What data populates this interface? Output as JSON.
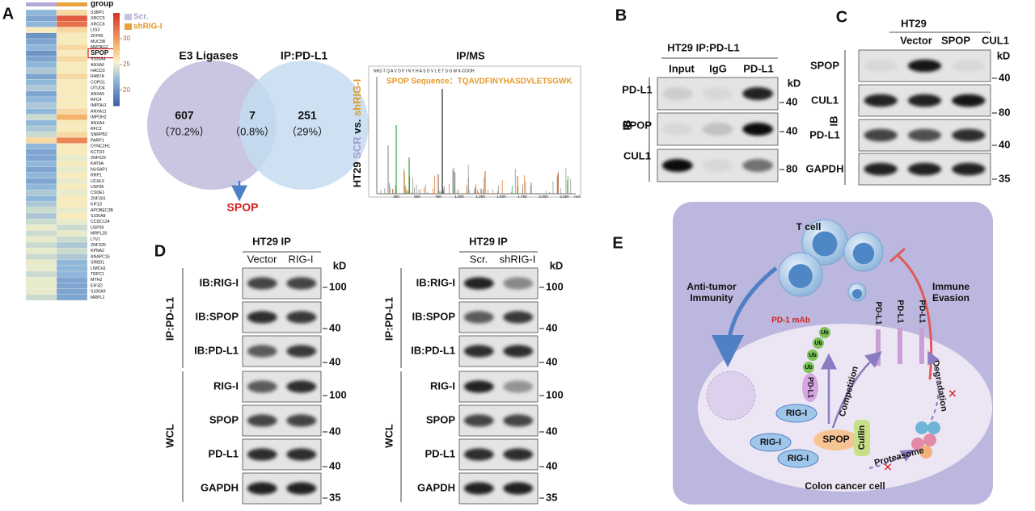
{
  "panel_labels": [
    "A",
    "B",
    "C",
    "D",
    "E"
  ],
  "heatmap": {
    "group_label": "group",
    "legend": [
      "Scr.",
      "shRIG-I"
    ],
    "colorbar": {
      "range": [
        17,
        35
      ],
      "ticks": [
        30,
        25,
        20
      ]
    },
    "genes": [
      "SSBP1",
      "XRCC5",
      "XRCC6",
      "LIG3",
      "ZFP90",
      "MUC5B",
      "MMTAG2",
      "SPOP",
      "S100A4",
      "ANXA6",
      "HACD3",
      "RAB7A",
      "COPG1",
      "OTUD4",
      "ANXA5",
      "RFC4",
      "IMPDH1",
      "ANXA11",
      "IMPDH2",
      "ANXA4",
      "RFC3",
      "SNRPB2",
      "PARP1",
      "DYNC2H1",
      "KCTD3",
      "ZNF629",
      "KAT6A",
      "NUSAP1",
      "RRP1",
      "UCHL5",
      "USP36",
      "CSDE1",
      "ZNF281",
      "KIF23",
      "APOBEC3B",
      "S100A8",
      "CCDC124",
      "USP39",
      "MRPL28",
      "LTV1",
      "ZNF326",
      "KPNA2",
      "ANAPC16",
      "SRBD1",
      "LIMCH1",
      "TRPC1",
      "MYH2",
      "EIF3D",
      "S100A9",
      "MRPL2"
    ],
    "values": [
      [
        22,
        27
      ],
      [
        21,
        33
      ],
      [
        22,
        32
      ],
      [
        26,
        27
      ],
      [
        20,
        26
      ],
      [
        21,
        26
      ],
      [
        22,
        27
      ],
      [
        20,
        26
      ],
      [
        21,
        27
      ],
      [
        22,
        26
      ],
      [
        23,
        26
      ],
      [
        21,
        27
      ],
      [
        22,
        26
      ],
      [
        23,
        26
      ],
      [
        21,
        26
      ],
      [
        22,
        26
      ],
      [
        23,
        26
      ],
      [
        22,
        27
      ],
      [
        24,
        29
      ],
      [
        22,
        26
      ],
      [
        23,
        26
      ],
      [
        24,
        27
      ],
      [
        27,
        31
      ],
      [
        22,
        26
      ],
      [
        21,
        26
      ],
      [
        21,
        25
      ],
      [
        22,
        26
      ],
      [
        21,
        25
      ],
      [
        22,
        26
      ],
      [
        21,
        25
      ],
      [
        22,
        26
      ],
      [
        23,
        25
      ],
      [
        22,
        26
      ],
      [
        23,
        26
      ],
      [
        24,
        25
      ],
      [
        23,
        26
      ],
      [
        24,
        25
      ],
      [
        25,
        24
      ],
      [
        24,
        25
      ],
      [
        25,
        24
      ],
      [
        24,
        23
      ],
      [
        25,
        24
      ],
      [
        24,
        23
      ],
      [
        25,
        22
      ],
      [
        25,
        22
      ],
      [
        24,
        22
      ],
      [
        25,
        21
      ],
      [
        25,
        21
      ],
      [
        25,
        21
      ],
      [
        24,
        21
      ]
    ]
  },
  "venn": {
    "sets": [
      {
        "label": "E3 Ligases",
        "count": 607,
        "percent": "（70.2%）"
      },
      {
        "label": "IP:PD-L1",
        "count": 251,
        "percent": "（29%）"
      }
    ],
    "intersection": {
      "count": 7,
      "percent": "（0.8%）"
    },
    "result": "SPOP"
  },
  "ms": {
    "title": "IP/MS",
    "side_label": [
      "HT29 ",
      "SCR",
      " vs. ",
      "shRIG-I"
    ],
    "peptide": "NH2-T Q A V D F I N Y H A S D V L E T S G W K-COOH",
    "sequence": "SPOP Sequence：TQAVDFINYHASDVLETSGWK",
    "x_ticks": [
      "250",
      "500",
      "750",
      "1,000",
      "1,250",
      "1,500",
      "1,750",
      "2,000",
      "2,250"
    ],
    "x_unit": "m/z"
  },
  "panel_b": {
    "title": "HT29  IP:PD-L1",
    "lanes": [
      "Input",
      "IgG",
      "PD-L1"
    ],
    "rows": [
      "PD-L1",
      "SPOP",
      "CUL1"
    ],
    "side": "IB",
    "unit": "kD",
    "markers": [
      40,
      40,
      80
    ]
  },
  "panel_c": {
    "title": "HT29",
    "lanes": [
      "Vector",
      "SPOP",
      "CUL1"
    ],
    "rows": [
      "SPOP",
      "CUL1",
      "PD-L1",
      "GAPDH"
    ],
    "side": "IB",
    "unit": "kD",
    "markers": [
      40,
      80,
      40,
      35
    ]
  },
  "panel_d": [
    {
      "title": "HT29 IP",
      "lanes": [
        "Vector",
        "RIG-I"
      ],
      "groups": [
        "IP:PD-L1",
        "WCL"
      ],
      "rows": [
        "IB:RIG-I",
        "IB:SPOP",
        "IB:PD-L1",
        "RIG-I",
        "SPOP",
        "PD-L1",
        "GAPDH"
      ],
      "unit": "kD",
      "markers": [
        100,
        40,
        40,
        100,
        40,
        40,
        35
      ]
    },
    {
      "title": "HT29 IP",
      "lanes": [
        "Scr.",
        "shRIG-I"
      ],
      "groups": [
        "IP:PD-L1",
        "WCL"
      ],
      "rows": [
        "IB:RIG-I",
        "IB:SPOP",
        "IB:PD-L1",
        "RIG-I",
        "SPOP",
        "PD-L1",
        "GAPDH"
      ],
      "unit": "kD",
      "markers": [
        100,
        40,
        40,
        100,
        40,
        40,
        35
      ]
    }
  ],
  "schematic": {
    "t_cell": "T cell",
    "anti": [
      "Anti-tumor",
      "Immunity"
    ],
    "evasion": [
      "Immune",
      "Evasion"
    ],
    "drug": "PD-1 mAb",
    "membrane_pdl1": [
      "PD-L1",
      "PD-L1",
      "PD-L1"
    ],
    "pdl1": "PD-L1",
    "ub": [
      "Ub",
      "Ub",
      "Ub",
      "Ub"
    ],
    "competition": "Competition",
    "degradation": "Degradation",
    "rig": [
      "RIG-I",
      "RIG-I",
      "RIG-I"
    ],
    "spop": "SPOP",
    "cullin": "Cullin",
    "proteasome": "Proteasome",
    "cell": "Colon cancer cell"
  }
}
